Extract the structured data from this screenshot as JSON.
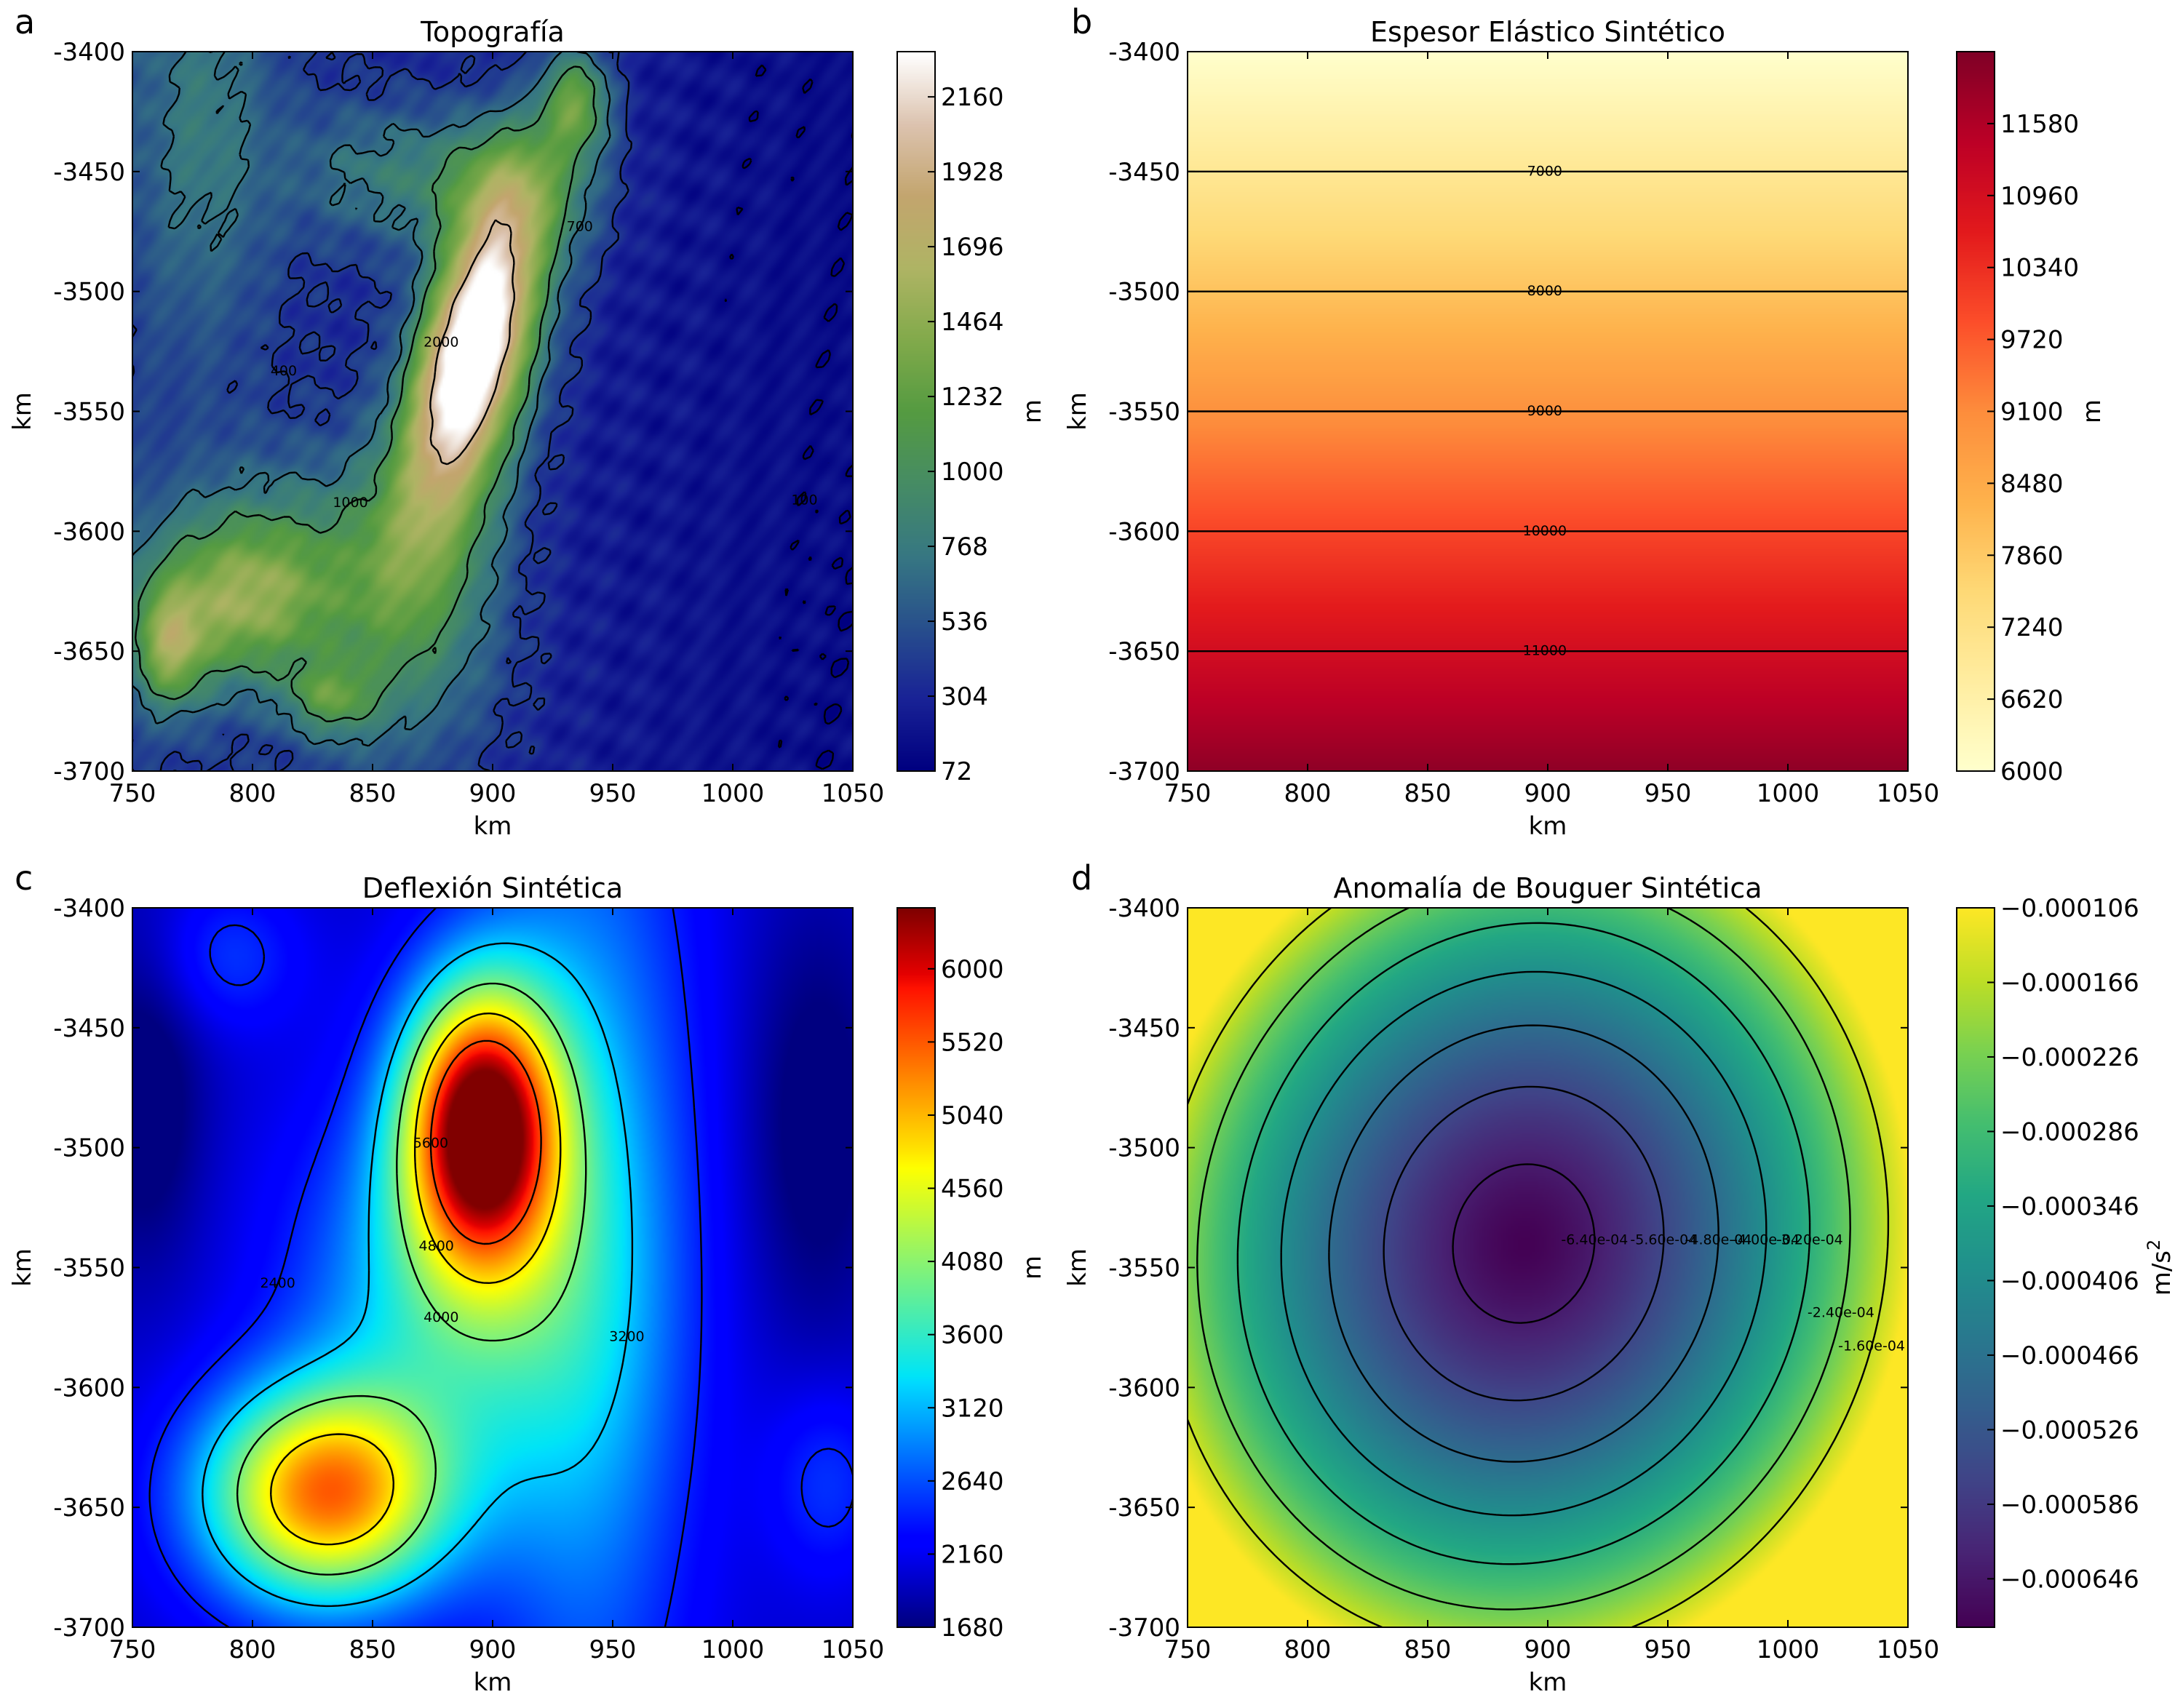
{
  "chart_data": [
    {
      "type": "heatmap",
      "panel_letter": "a",
      "title": "Topografía",
      "xlabel": "km",
      "ylabel": "km",
      "colorbar_label": "m",
      "colormap": "gist_earth",
      "xlim": [
        750,
        1050
      ],
      "ylim": [
        -3700,
        -3400
      ],
      "x_ticks": [
        750,
        800,
        850,
        900,
        950,
        1000,
        1050
      ],
      "y_ticks": [
        -3400,
        -3450,
        -3500,
        -3550,
        -3600,
        -3650,
        -3700
      ],
      "value_range": [
        72,
        2300
      ],
      "colorbar_ticks": [
        72,
        304,
        536,
        768,
        1000,
        1232,
        1464,
        1696,
        1928,
        2160
      ],
      "contour_levels": [
        100,
        400,
        700,
        1000,
        2000
      ],
      "features": [
        {
          "x": 890,
          "y": -3520,
          "value": 2280
        },
        {
          "x": 880,
          "y": -3580,
          "value": 1800
        },
        {
          "x": 905,
          "y": -3450,
          "value": 1450
        },
        {
          "x": 935,
          "y": -3420,
          "value": 1400
        },
        {
          "x": 790,
          "y": -3630,
          "value": 1500
        },
        {
          "x": 760,
          "y": -3650,
          "value": 1700
        },
        {
          "x": 830,
          "y": -3670,
          "value": 1150
        },
        {
          "x": 780,
          "y": -3430,
          "value": 820
        },
        {
          "x": 1010,
          "y": -3580,
          "value": 72
        }
      ]
    },
    {
      "type": "heatmap",
      "panel_letter": "b",
      "title": "Espesor Elástico Sintético",
      "xlabel": "km",
      "ylabel": "km",
      "colorbar_label": "m",
      "colormap": "YlOrRd",
      "xlim": [
        750,
        1050
      ],
      "ylim": [
        -3700,
        -3400
      ],
      "x_ticks": [
        750,
        800,
        850,
        900,
        950,
        1000,
        1050
      ],
      "y_ticks": [
        -3400,
        -3450,
        -3500,
        -3550,
        -3600,
        -3650,
        -3700
      ],
      "value_range": [
        6000,
        12200
      ],
      "colorbar_ticks": [
        6000,
        6620,
        7240,
        7860,
        8480,
        9100,
        9720,
        10340,
        10960,
        11580
      ],
      "contour_levels": [
        7000,
        8000,
        9000,
        10000,
        11000
      ],
      "field": "linear in y: 6000 m at y=-3400 km to 12000 m at y=-3700 km"
    },
    {
      "type": "heatmap",
      "panel_letter": "c",
      "title": "Deflexión Sintética",
      "xlabel": "km",
      "ylabel": "km",
      "colorbar_label": "m",
      "colormap": "jet",
      "xlim": [
        750,
        1050
      ],
      "ylim": [
        -3700,
        -3400
      ],
      "x_ticks": [
        750,
        800,
        850,
        900,
        950,
        1000,
        1050
      ],
      "y_ticks": [
        -3400,
        -3450,
        -3500,
        -3550,
        -3600,
        -3650,
        -3700
      ],
      "value_range": [
        1680,
        6400
      ],
      "colorbar_ticks": [
        1680,
        2160,
        2640,
        3120,
        3600,
        4080,
        4560,
        5040,
        5520,
        6000
      ],
      "contour_levels": [
        2400,
        3200,
        4000,
        4800,
        5600
      ],
      "features": [
        {
          "x": 895,
          "y": -3490,
          "value": 6350
        },
        {
          "x": 835,
          "y": -3640,
          "value": 5400
        },
        {
          "x": 1040,
          "y": -3500,
          "value": 1680
        },
        {
          "x": 755,
          "y": -3490,
          "value": 2000
        }
      ]
    },
    {
      "type": "heatmap",
      "panel_letter": "d",
      "title": "Anomalía de Bouguer Sintética",
      "xlabel": "km",
      "ylabel": "km",
      "colorbar_label": "m/s",
      "colorbar_label_sup": "2",
      "colormap": "viridis",
      "xlim": [
        750,
        1050
      ],
      "ylim": [
        -3700,
        -3400
      ],
      "x_ticks": [
        750,
        800,
        850,
        900,
        950,
        1000,
        1050
      ],
      "y_ticks": [
        -3400,
        -3450,
        -3500,
        -3550,
        -3600,
        -3650,
        -3700
      ],
      "value_range": [
        -0.000685,
        -0.000106
      ],
      "colorbar_ticks": [
        "−0.000106",
        "−0.000166",
        "−0.000226",
        "−0.000286",
        "−0.000346",
        "−0.000406",
        "−0.000466",
        "−0.000526",
        "−0.000586",
        "−0.000646"
      ],
      "contour_levels": [
        "-1.60e-04",
        "-2.40e-04",
        "-3.20e-04",
        "-4.00e-04",
        "-4.80e-04",
        "-5.60e-04",
        "-6.40e-04"
      ],
      "minimum": {
        "x": 890,
        "y": -3540,
        "value": -0.000685
      }
    }
  ]
}
